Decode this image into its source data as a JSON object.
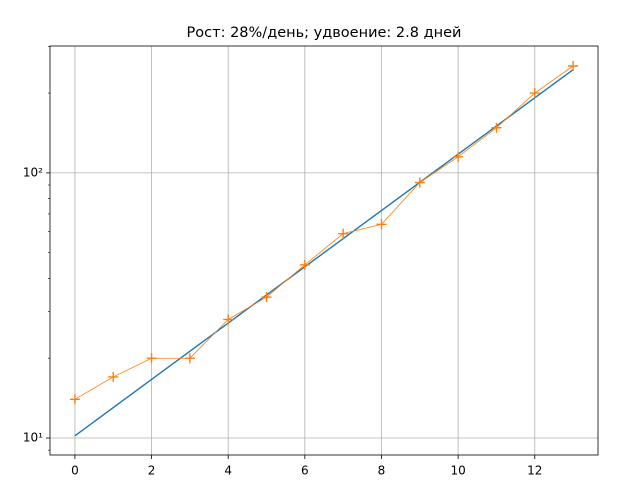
{
  "chart_data": {
    "type": "line",
    "title": "Рост: 28%/день; удвоение: 2.8 дней",
    "log_y": true,
    "grid": true,
    "xlim": [
      -0.65,
      13.65
    ],
    "xticks": [
      0,
      2,
      4,
      6,
      8,
      10,
      12
    ],
    "ylim": [
      8.63,
      301
    ],
    "yticks": [
      {
        "value": 10,
        "label": "10¹"
      },
      {
        "value": 100,
        "label": "10²"
      }
    ],
    "yminorticks": [
      9,
      20,
      30,
      40,
      50,
      60,
      70,
      80,
      90,
      200,
      300
    ],
    "series": [
      {
        "color": "#1f77b4",
        "marker": "none",
        "x": [
          0,
          13
        ],
        "values": [
          10.2,
          245
        ]
      },
      {
        "color": "#ff7f0e",
        "marker": "+",
        "x": [
          0,
          1,
          2,
          3,
          4,
          5,
          6,
          7,
          8,
          9,
          10,
          11,
          12,
          13
        ],
        "values": [
          14,
          17,
          20,
          20,
          28,
          34,
          45,
          59,
          64,
          92,
          115,
          148,
          200,
          253
        ]
      }
    ]
  }
}
